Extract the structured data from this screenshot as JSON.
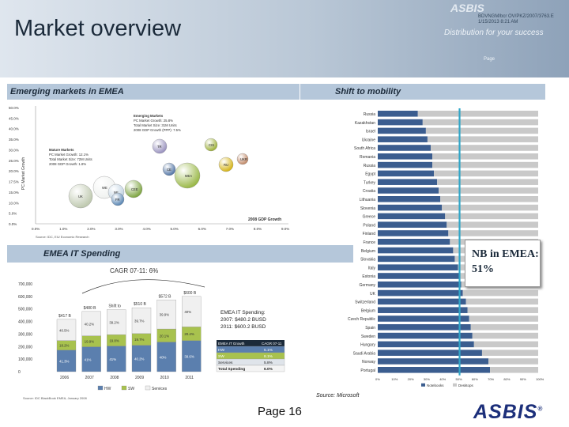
{
  "header": {
    "title": "Market overview",
    "logo": "ASBIS",
    "meta": [
      "BDVNGM/bcr OV/PKZ/2007/3763.E",
      "1/15/2013 8:21 AM"
    ],
    "tagline": "Distribution for your success",
    "side": "Page"
  },
  "emerging": {
    "label": "Emerging markets in EMEA",
    "ylabel": "PC Market Growth",
    "xlabel": "2008 GDP Growth",
    "y_ticks": [
      "50.0%",
      "45.0%",
      "40.0%",
      "35.0%",
      "30.0%",
      "25.0%",
      "20.0%",
      "17.5%",
      "15.0%",
      "10.0%",
      "5.0%",
      "0.0%"
    ],
    "x_ticks": [
      "0.0%",
      "1.0%",
      "2.0%",
      "3.0%",
      "4.0%",
      "5.0%",
      "6.0%",
      "7.0%",
      "8.0%",
      "9.0%"
    ],
    "notes_em": [
      "Emerging Markets",
      "PC Market Growth: 25.8%",
      "Total Market Size: 31M Units",
      "2008 GDP Growth (PPP): 7.5%"
    ],
    "notes_mat": [
      "Mature Markets",
      "PC Market Growth: 12.1%",
      "Total Market Size: 72M Units",
      "2008 GDP Growth: 1.8%"
    ],
    "bubbles": [
      {
        "label": "TR",
        "color": "#9a93bf"
      },
      {
        "label": "CIS",
        "color": "#9fb23c"
      },
      {
        "label": "RU",
        "color": "#d6b51a"
      },
      {
        "label": "UKR",
        "color": "#c28a69"
      },
      {
        "label": "CE",
        "color": "#5577a6"
      },
      {
        "label": "MEA",
        "color": "#9bb94a"
      },
      {
        "label": "WE",
        "color": "#f0f2f0"
      },
      {
        "label": "NE",
        "color": "#c1d3e2"
      },
      {
        "label": "CEE",
        "color": "#7fa544"
      },
      {
        "label": "UK",
        "color": "#bfc9b0"
      },
      {
        "label": "FR",
        "color": "#5a86b3"
      }
    ],
    "source": "Source: IDC, EIU Economic Research"
  },
  "spending": {
    "label": "EMEA IT Spending",
    "cagr": "CAGR 07-11: 6%",
    "categories": [
      "2006",
      "2007",
      "2008",
      "2009",
      "2010",
      "2011"
    ],
    "totals": [
      "$417 B",
      "$480 B",
      "Shift to",
      "$510 B",
      "$572 B",
      "$600 B"
    ],
    "y_ticks": [
      "700,000",
      "600,000",
      "500,000",
      "400,000",
      "300,000",
      "200,000",
      "100,000",
      "0"
    ],
    "series": [
      {
        "name": "HW",
        "color": "#5b7fae",
        "values": [
          "41.3%",
          "41%",
          "41%",
          "40.2%",
          "40%",
          "39.6%"
        ]
      },
      {
        "name": "SW",
        "color": "#a8c24e",
        "values": [
          "18.2%",
          "19.9%",
          "19.8%",
          "19.7%",
          "20.1%",
          "20.4%"
        ]
      },
      {
        "name": "Services",
        "color": "#f0f0f0",
        "values": [
          "40.5%",
          "40.2%",
          "39.2%",
          "39.7%",
          "39.9%",
          "40%"
        ]
      }
    ],
    "legend_box": [
      "EMEA IT Spending:",
      "2007: $480.2 BUSD",
      "2011: $600.2 BUSD"
    ],
    "table": {
      "header": [
        "EMEA IT Growth",
        "CAGR 07-11"
      ],
      "rows": [
        [
          "HW",
          "5.1%"
        ],
        [
          "SW",
          "8.1%"
        ],
        [
          "Services",
          "5.8%"
        ],
        [
          "Total Spending",
          "6.0%"
        ]
      ]
    },
    "source": "Source: IDC BlackBook EMEA, January 2008"
  },
  "mobility": {
    "label": "Shift to mobility",
    "countries": [
      "Russia",
      "Kazakhstan",
      "Israel",
      "Ukraine",
      "South Africa",
      "Romania",
      "Russia",
      "Egypt",
      "Turkey",
      "Croatia",
      "Lithuania",
      "Slovenia",
      "Greece",
      "Poland",
      "Finland",
      "France",
      "Belgium",
      "Slovakia",
      "Italy",
      "Estonia",
      "Germany",
      "UK",
      "Switzerland",
      "Belgium",
      "Czech Republic",
      "Spain",
      "Sweden",
      "Hungary",
      "Saudi Arabia",
      "Norway",
      "Portugal"
    ],
    "notebook_share": [
      25,
      28,
      30,
      31,
      33,
      34,
      34,
      35,
      37,
      38,
      39,
      40,
      42,
      43,
      44,
      45,
      47,
      48,
      50,
      51,
      52,
      53,
      55,
      56,
      57,
      58,
      59,
      60,
      65,
      69,
      70
    ],
    "x_ticks": [
      "0%",
      "10%",
      "20%",
      "30%",
      "40%",
      "50%",
      "60%",
      "70%",
      "80%",
      "90%",
      "100%"
    ],
    "legend": [
      "Notebooks",
      "Desktops"
    ],
    "colors": {
      "notebook": "#3b5d8f",
      "desktop": "#c9c9c9",
      "marker": "#30a6c8"
    },
    "marker_value": 51,
    "callout": [
      "NB in EMEA:",
      "51%"
    ]
  },
  "footer": {
    "source": "Source: Microsoft",
    "page": "Page 16",
    "logo": "ASBIS",
    "reg": "®"
  }
}
